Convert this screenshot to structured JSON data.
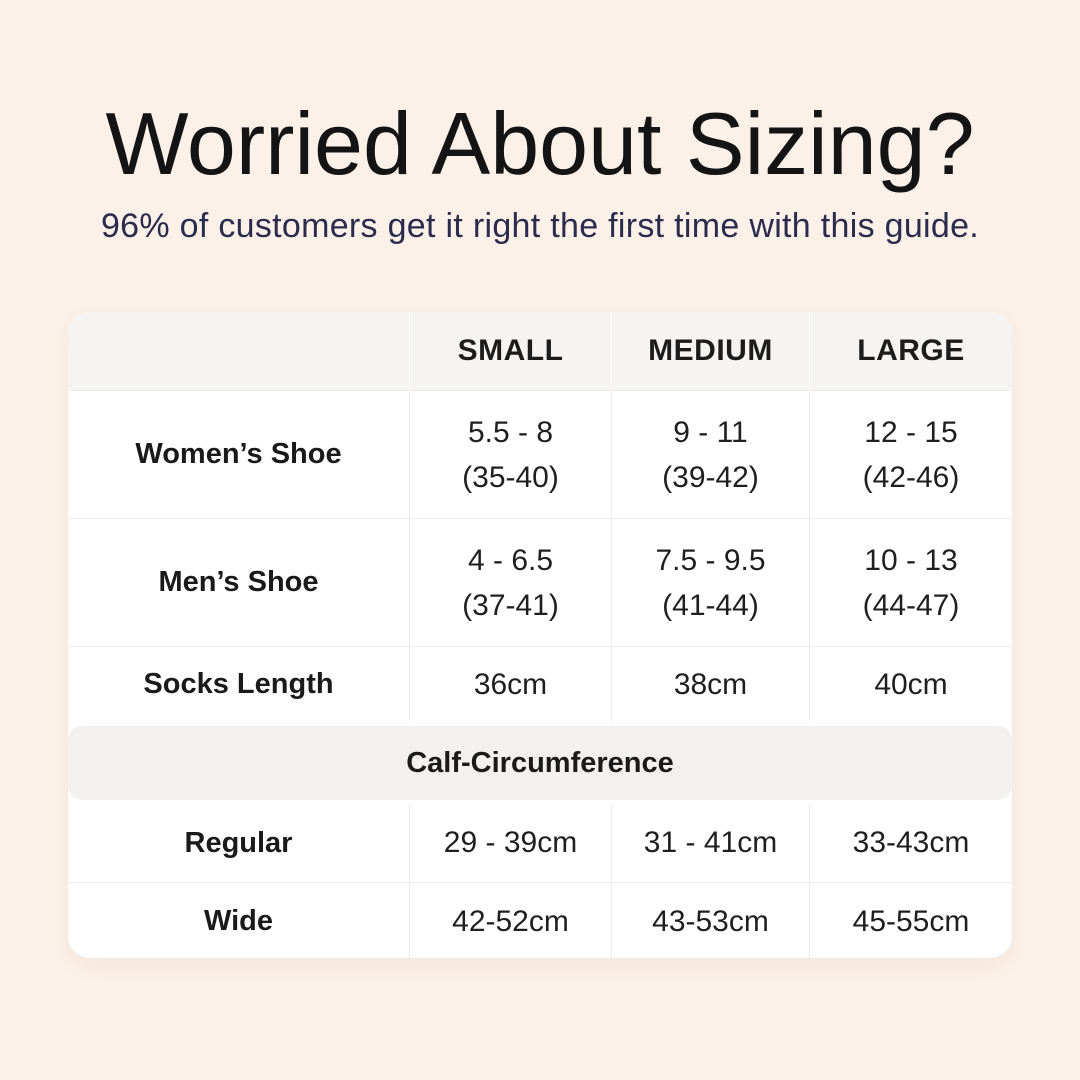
{
  "colors": {
    "background": "#fcf1e8",
    "title_text": "#141414",
    "subtitle_text": "#2b2b4d",
    "table_background": "#ffffff",
    "header_row_background": "#f5f4f2",
    "section_band_background": "#f2f1ef",
    "divider_line": "#ececea"
  },
  "chart_data": {
    "type": "table",
    "title": "Worried About Sizing?",
    "subtitle": "96% of customers get it right the first time with this guide.",
    "columns": [
      "",
      "SMALL",
      "MEDIUM",
      "LARGE"
    ],
    "shoe_rows": [
      {
        "label": "Women’s Shoe",
        "cells": [
          {
            "line1": "5.5 - 8",
            "line2": "(35-40)"
          },
          {
            "line1": "9 - 11",
            "line2": "(39-42)"
          },
          {
            "line1": "12 - 15",
            "line2": "(42-46)"
          }
        ]
      },
      {
        "label": "Men’s Shoe",
        "cells": [
          {
            "line1": "4 - 6.5",
            "line2": "(37-41)"
          },
          {
            "line1": "7.5 - 9.5",
            "line2": "(41-44)"
          },
          {
            "line1": "10 - 13",
            "line2": "(44-47)"
          }
        ]
      }
    ],
    "socks_row": {
      "label": "Socks Length",
      "cells": [
        "36cm",
        "38cm",
        "40cm"
      ]
    },
    "section_label": "Calf-Circumference",
    "calf_rows": [
      {
        "label": "Regular",
        "cells": [
          "29 - 39cm",
          "31 - 41cm",
          "33-43cm"
        ]
      },
      {
        "label": "Wide",
        "cells": [
          "42-52cm",
          "43-53cm",
          "45-55cm"
        ]
      }
    ]
  }
}
